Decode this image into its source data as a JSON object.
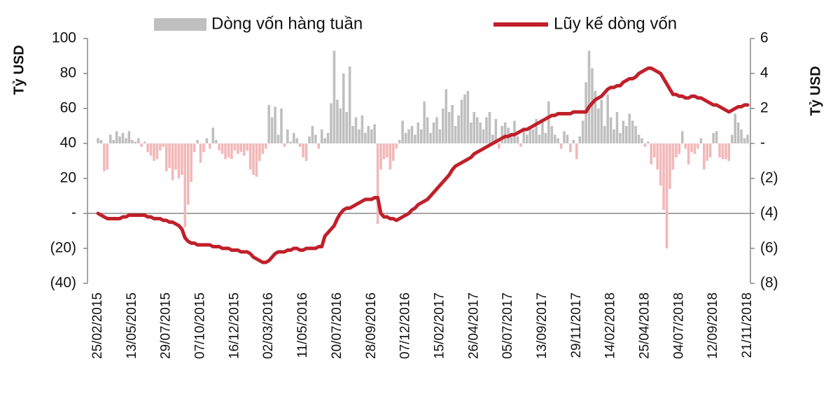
{
  "chart_data": {
    "type": "bar",
    "y_label": "Tỷ USD",
    "y2_label": "Tỷ USD",
    "categories": [
      "25/02/2015",
      null,
      null,
      null,
      null,
      null,
      null,
      null,
      null,
      null,
      null,
      "13/05/2015",
      null,
      null,
      null,
      null,
      null,
      null,
      null,
      null,
      null,
      null,
      "29/07/2015",
      null,
      null,
      null,
      null,
      null,
      null,
      null,
      null,
      null,
      null,
      "07/10/2015",
      null,
      null,
      null,
      null,
      null,
      null,
      null,
      null,
      null,
      null,
      "16/12/2015",
      null,
      null,
      null,
      null,
      null,
      null,
      null,
      null,
      null,
      null,
      "02/03/2016",
      null,
      null,
      null,
      null,
      null,
      null,
      null,
      null,
      null,
      null,
      "11/05/2016",
      null,
      null,
      null,
      null,
      null,
      null,
      null,
      null,
      null,
      null,
      "20/07/2016",
      null,
      null,
      null,
      null,
      null,
      null,
      null,
      null,
      null,
      null,
      "28/09/2016",
      null,
      null,
      null,
      null,
      null,
      null,
      null,
      null,
      null,
      null,
      "07/12/2016",
      null,
      null,
      null,
      null,
      null,
      null,
      null,
      null,
      null,
      null,
      "15/02/2017",
      null,
      null,
      null,
      null,
      null,
      null,
      null,
      null,
      null,
      null,
      "26/04/2017",
      null,
      null,
      null,
      null,
      null,
      null,
      null,
      null,
      null,
      null,
      "05/07/2017",
      null,
      null,
      null,
      null,
      null,
      null,
      null,
      null,
      null,
      null,
      "13/09/2017",
      null,
      null,
      null,
      null,
      null,
      null,
      null,
      null,
      null,
      null,
      "29/11/2017",
      null,
      null,
      null,
      null,
      null,
      null,
      null,
      null,
      null,
      null,
      "14/02/2018",
      null,
      null,
      null,
      null,
      null,
      null,
      null,
      null,
      null,
      null,
      "25/04/2018",
      null,
      null,
      null,
      null,
      null,
      null,
      null,
      null,
      null,
      null,
      "04/07/2018",
      null,
      null,
      null,
      null,
      null,
      null,
      null,
      null,
      null,
      null,
      "12/09/2018",
      null,
      null,
      null,
      null,
      null,
      null,
      null,
      null,
      null,
      null,
      "21/11/2018"
    ],
    "series": [
      {
        "name": "Dòng vốn hàng tuần",
        "type": "bar",
        "axis": "y2",
        "color": "#bfbfbf",
        "negative_color": "#f2b8b8",
        "values": [
          0.3,
          0.2,
          -1.6,
          -1.5,
          0.5,
          0.2,
          0.7,
          0.4,
          0.6,
          0.3,
          0.7,
          0.2,
          0.1,
          0.3,
          -0.2,
          0.1,
          -0.5,
          -0.7,
          -1.0,
          -0.9,
          -0.4,
          -0.2,
          -1.6,
          -1.4,
          -2.1,
          -1.5,
          -2.0,
          -1.8,
          -4.8,
          -3.5,
          -2.2,
          -0.5,
          0.2,
          -1.1,
          -0.5,
          0.3,
          -0.3,
          0.9,
          0.2,
          -0.4,
          -0.6,
          -0.9,
          -0.8,
          -0.9,
          -0.4,
          -0.6,
          -0.5,
          -0.7,
          -0.4,
          -1.5,
          -1.8,
          -1.9,
          -1.0,
          -0.6,
          -0.3,
          2.2,
          1.5,
          2.1,
          0.5,
          2.0,
          -0.2,
          0.8,
          0.1,
          0.6,
          0.3,
          -0.2,
          -0.8,
          -1.0,
          0.4,
          1.0,
          0.5,
          -0.3,
          0.8,
          0.3,
          0.6,
          2.3,
          5.3,
          2.5,
          2.0,
          4.0,
          1.8,
          4.4,
          1.0,
          1.5,
          0.8,
          1.6,
          0.6,
          1.0,
          0.8,
          1.1,
          -4.6,
          -1.5,
          -0.9,
          -0.8,
          -1.5,
          -1.0,
          -0.3,
          0.2,
          1.3,
          0.6,
          0.8,
          1.0,
          0.5,
          1.2,
          0.8,
          2.4,
          1.5,
          0.6,
          1.2,
          1.5,
          0.8,
          2.0,
          3.1,
          1.8,
          2.2,
          1.0,
          1.6,
          2.5,
          2.8,
          3.0,
          1.2,
          1.8,
          1.5,
          1.2,
          0.8,
          1.5,
          1.8,
          0.5,
          1.4,
          -0.3,
          1.0,
          1.2,
          0.9,
          0.6,
          1.3,
          0.4,
          -0.2,
          0.9,
          0.5,
          1.0,
          0.8,
          1.4,
          0.5,
          1.2,
          0.6,
          2.4,
          1.0,
          0.5,
          0.3,
          -0.3,
          0.7,
          0.5,
          -0.5,
          0.2,
          -0.9,
          0.4,
          1.3,
          3.5,
          5.3,
          4.3,
          3.0,
          2.0,
          2.5,
          1.0,
          2.8,
          1.5,
          0.8,
          1.8,
          0.6,
          1.3,
          1.0,
          1.7,
          1.3,
          1.0,
          0.5,
          0.3,
          -0.2,
          0.1,
          -1.2,
          -0.8,
          -1.5,
          -2.4,
          -3.8,
          -6.0,
          -2.6,
          -1.5,
          -0.8,
          -0.6,
          0.7,
          -0.3,
          -1.2,
          -0.5,
          -0.6,
          -0.3,
          0.3,
          -1.5,
          -1.0,
          -0.8,
          0.6,
          0.7,
          -0.8,
          -0.9,
          -0.9,
          -1.0,
          0.5,
          1.7,
          1.2,
          0.8,
          0.3,
          0.5
        ]
      },
      {
        "name": "Lũy kế dòng vốn",
        "type": "line",
        "axis": "y",
        "color": "#c0202a",
        "values": [
          0,
          -1,
          -2,
          -3,
          -3,
          -3,
          -3,
          -3,
          -2,
          -2,
          -1,
          -1,
          -1,
          -1,
          -1,
          -1,
          -2,
          -2,
          -3,
          -3,
          -3,
          -4,
          -4,
          -5,
          -5,
          -6,
          -7,
          -9,
          -14,
          -16,
          -17,
          -17,
          -18,
          -18,
          -18,
          -18,
          -18,
          -19,
          -19,
          -19,
          -20,
          -20,
          -20,
          -21,
          -21,
          -21,
          -22,
          -22,
          -22,
          -23,
          -25,
          -26,
          -27,
          -28,
          -28,
          -27,
          -25,
          -23,
          -22,
          -22,
          -22,
          -21,
          -21,
          -20,
          -20,
          -21,
          -21,
          -20,
          -20,
          -20,
          -20,
          -19,
          -19,
          -13,
          -11,
          -9,
          -7,
          -3,
          0,
          2,
          3,
          3,
          4,
          5,
          6,
          7,
          8,
          8,
          8,
          9,
          9,
          0,
          -2,
          -2,
          -3,
          -3,
          -4,
          -3,
          -2,
          -1,
          0,
          2,
          3,
          5,
          6,
          7,
          8,
          10,
          12,
          14,
          16,
          18,
          20,
          22,
          25,
          27,
          28,
          29,
          30,
          31,
          32,
          34,
          35,
          36,
          37,
          38,
          39,
          40,
          41,
          42,
          43,
          44,
          44,
          45,
          45,
          46,
          47,
          48,
          48,
          49,
          50,
          51,
          52,
          53,
          54,
          55,
          56,
          56,
          57,
          57,
          57,
          57,
          57,
          58,
          58,
          58,
          58,
          58,
          61,
          63,
          65,
          66,
          67,
          69,
          71,
          72,
          72,
          73,
          73,
          75,
          76,
          77,
          77,
          78,
          80,
          81,
          82,
          83,
          83,
          82,
          81,
          80,
          77,
          74,
          71,
          68,
          68,
          67,
          67,
          66,
          66,
          67,
          67,
          66,
          66,
          65,
          64,
          63,
          62,
          62,
          61,
          60,
          59,
          58,
          59,
          60,
          61,
          61,
          62,
          62
        ]
      }
    ],
    "ylim": [
      -40,
      100
    ],
    "yticks": [
      {
        "value": -40,
        "label": "(40)"
      },
      {
        "value": -20,
        "label": "(20)"
      },
      {
        "value": 0,
        "label": "-"
      },
      20,
      40,
      60,
      80,
      100
    ],
    "y2lim": [
      -8,
      6
    ],
    "y2ticks": [
      {
        "value": -8,
        "label": "(8)"
      },
      {
        "value": -6,
        "label": "(6)"
      },
      {
        "value": -4,
        "label": "(4)"
      },
      {
        "value": -2,
        "label": "(2)"
      },
      {
        "value": 0,
        "label": "-"
      },
      2,
      4,
      6
    ],
    "grid": false
  }
}
